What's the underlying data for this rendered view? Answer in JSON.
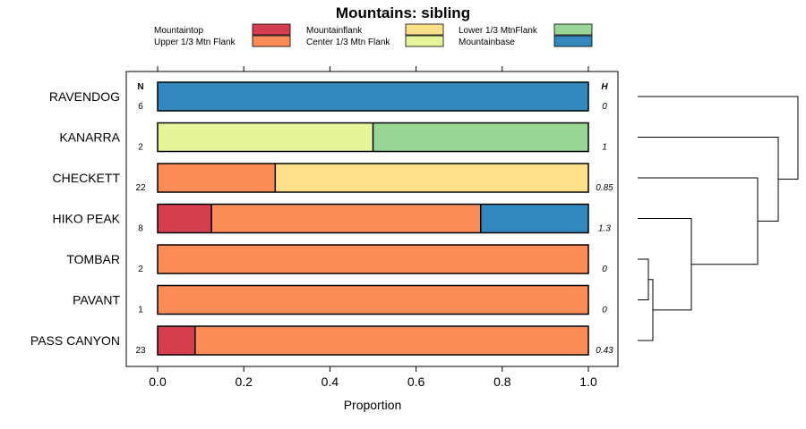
{
  "chart_data": {
    "type": "bar",
    "orientation": "horizontal",
    "stacked": true,
    "title": "Mountains: sibling",
    "xlabel": "Proportion",
    "ylabel": "",
    "xlim": [
      0,
      1
    ],
    "x_ticks": [
      "0.0",
      "0.2",
      "0.4",
      "0.6",
      "0.8",
      "1.0"
    ],
    "n_header": "N",
    "h_header": "H",
    "legend": [
      {
        "key": "mountaintop",
        "label": "Mountaintop",
        "color": "#D53E4F"
      },
      {
        "key": "upper",
        "label": "Upper 1/3 Mtn Flank",
        "color": "#FC8D59"
      },
      {
        "key": "flank",
        "label": "Mountainflank",
        "color": "#FEE08B"
      },
      {
        "key": "center",
        "label": "Center 1/3 Mtn Flank",
        "color": "#E6F598"
      },
      {
        "key": "lower",
        "label": "Lower 1/3 MtnFlank",
        "color": "#99D594"
      },
      {
        "key": "base",
        "label": "Mountainbase",
        "color": "#3288BD"
      }
    ],
    "categories": [
      "RAVENDOG",
      "KANARRA",
      "CHECKETT",
      "HIKO PEAK",
      "TOMBAR",
      "PAVANT",
      "PASS CANYON"
    ],
    "n_values": [
      "6",
      "2",
      "22",
      "8",
      "2",
      "1",
      "23"
    ],
    "h_values": [
      "0",
      "1",
      "0.85",
      "1.3",
      "0",
      "0",
      "0.43"
    ],
    "rows": [
      {
        "segments": [
          {
            "key": "base",
            "value": 1.0
          }
        ]
      },
      {
        "segments": [
          {
            "key": "center",
            "value": 0.5
          },
          {
            "key": "lower",
            "value": 0.5
          }
        ]
      },
      {
        "segments": [
          {
            "key": "upper",
            "value": 0.273
          },
          {
            "key": "flank",
            "value": 0.727
          }
        ]
      },
      {
        "segments": [
          {
            "key": "mountaintop",
            "value": 0.125
          },
          {
            "key": "upper",
            "value": 0.625
          },
          {
            "key": "base",
            "value": 0.25
          }
        ]
      },
      {
        "segments": [
          {
            "key": "upper",
            "value": 1.0
          }
        ]
      },
      {
        "segments": [
          {
            "key": "upper",
            "value": 1.0
          }
        ]
      },
      {
        "segments": [
          {
            "key": "mountaintop",
            "value": 0.087
          },
          {
            "key": "upper",
            "value": 0.913
          }
        ]
      }
    ],
    "dendrogram": true
  }
}
